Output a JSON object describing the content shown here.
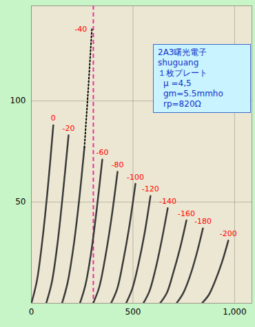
{
  "chart_data": {
    "type": "line",
    "xlim": [
      0,
      1085
    ],
    "ylim": [
      0,
      147
    ],
    "xticks": [
      0,
      500,
      1000
    ],
    "yticks": [
      50,
      100
    ],
    "grid": true,
    "annotations": [
      "2A3曙光電子",
      "shuguang",
      "１枚プレート",
      "μ =4,5",
      "gm=5.5mmho",
      "rp=820Ω"
    ],
    "reference_lines": [
      {
        "x": 305,
        "color": "#e8309a",
        "line_style": "dashed"
      }
    ],
    "series": [
      {
        "name": "0",
        "color": "#3a3a3a",
        "x": [
          0,
          27,
          54,
          81,
          108
        ],
        "values": [
          0,
          11,
          31,
          57,
          88
        ]
      },
      {
        "name": "-20",
        "color": "#3a3a3a",
        "x": [
          73,
          100,
          128,
          155,
          183
        ],
        "values": [
          0,
          10,
          29,
          54,
          83
        ]
      },
      {
        "name": "-40",
        "color": "#3a3a3a",
        "x": [
          151,
          178,
          206,
          234,
          261
        ],
        "values": [
          0,
          10,
          27,
          50,
          77
        ],
        "extension": {
          "x": [
            261,
            280,
            298
          ],
          "values": [
            77,
            106,
            136
          ],
          "color": "#000000",
          "line_style": "dotted"
        }
      },
      {
        "name": "-60",
        "color": "#3a3a3a",
        "x": [
          239,
          266,
          294,
          321,
          349
        ],
        "values": [
          0,
          9,
          25,
          46,
          71
        ]
      },
      {
        "name": "-80",
        "color": "#3a3a3a",
        "x": [
          304,
          334,
          364,
          394,
          424
        ],
        "values": [
          0,
          8,
          23,
          42,
          65
        ]
      },
      {
        "name": "-100",
        "color": "#3a3a3a",
        "x": [
          392,
          422,
          452,
          482,
          512
        ],
        "values": [
          0,
          7,
          21,
          38,
          59
        ]
      },
      {
        "name": "-120",
        "color": "#3a3a3a",
        "x": [
          466,
          496,
          526,
          556,
          586
        ],
        "values": [
          0,
          7,
          19,
          34,
          53
        ]
      },
      {
        "name": "-140",
        "color": "#3a3a3a",
        "x": [
          551,
          581,
          611,
          641,
          671
        ],
        "values": [
          0,
          6,
          17,
          31,
          47
        ]
      },
      {
        "name": "-160",
        "color": "#3a3a3a",
        "x": [
          633,
          666,
          698,
          731,
          763
        ],
        "values": [
          0,
          5,
          15,
          27,
          41
        ]
      },
      {
        "name": "-180",
        "color": "#3a3a3a",
        "x": [
          714,
          747,
          779,
          812,
          844
        ],
        "values": [
          0,
          5,
          13,
          24,
          37
        ]
      },
      {
        "name": "-200",
        "color": "#3a3a3a",
        "x": [
          839,
          872,
          904,
          937,
          969
        ],
        "values": [
          0,
          4,
          11,
          20,
          31
        ]
      }
    ]
  }
}
